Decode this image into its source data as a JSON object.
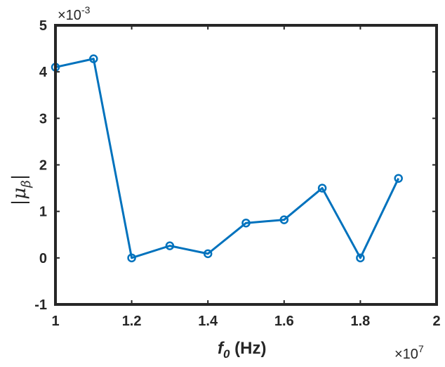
{
  "chart_data": {
    "type": "line",
    "x": [
      1.0,
      1.1,
      1.2,
      1.3,
      1.4,
      1.5,
      1.6,
      1.7,
      1.8,
      1.9
    ],
    "series": [
      {
        "values": [
          4.1,
          4.28,
          0.0,
          0.26,
          0.09,
          0.75,
          0.82,
          1.5,
          0.0,
          1.71
        ],
        "color": "#0072BD",
        "marker": "circle"
      }
    ],
    "xlabel": {
      "main": "f",
      "sub": "0",
      "unit": " (Hz)"
    },
    "ylabel": {
      "bar_left": "|",
      "mu": "μ",
      "sub": "β",
      "bar_right": "|"
    },
    "xlim": [
      1,
      2
    ],
    "ylim": [
      -1,
      5
    ],
    "xticks": [
      "1",
      "1.2",
      "1.4",
      "1.6",
      "1.8",
      "2"
    ],
    "yticks": [
      "-1",
      "0",
      "1",
      "2",
      "3",
      "4",
      "5"
    ],
    "x_multiplier": {
      "base": "×10",
      "exp": "7"
    },
    "y_multiplier": {
      "base": "×10",
      "exp": "-3"
    },
    "grid": false,
    "box": true
  }
}
